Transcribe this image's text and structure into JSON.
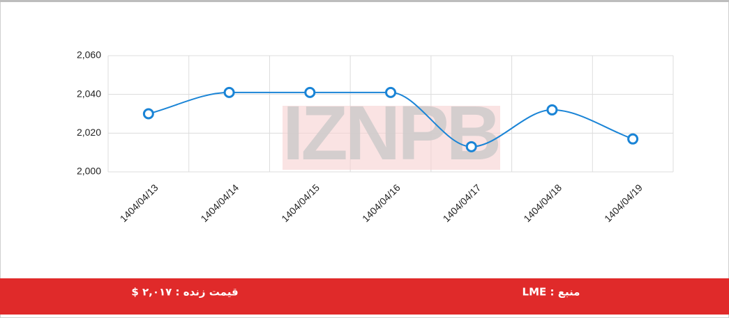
{
  "chart_data": {
    "type": "line",
    "watermark": "IZNPB",
    "categories": [
      "1404/04/13",
      "1404/04/14",
      "1404/04/15",
      "1404/04/16",
      "1404/04/17",
      "1404/04/18",
      "1404/04/19"
    ],
    "values": [
      2030,
      2041,
      2041,
      2041,
      2013,
      2032,
      2017
    ],
    "color": "#1a84d6",
    "ylim": [
      2000,
      2060
    ],
    "yticks": [
      {
        "value": 2000,
        "label": "2,000"
      },
      {
        "value": 2020,
        "label": "2,020"
      },
      {
        "value": 2040,
        "label": "2,040"
      },
      {
        "value": 2060,
        "label": "2,060"
      }
    ],
    "grid": true
  },
  "footer": {
    "live_price": "قیمت زنده : ۲,۰۱۷ $",
    "source": "منبع : LME"
  }
}
